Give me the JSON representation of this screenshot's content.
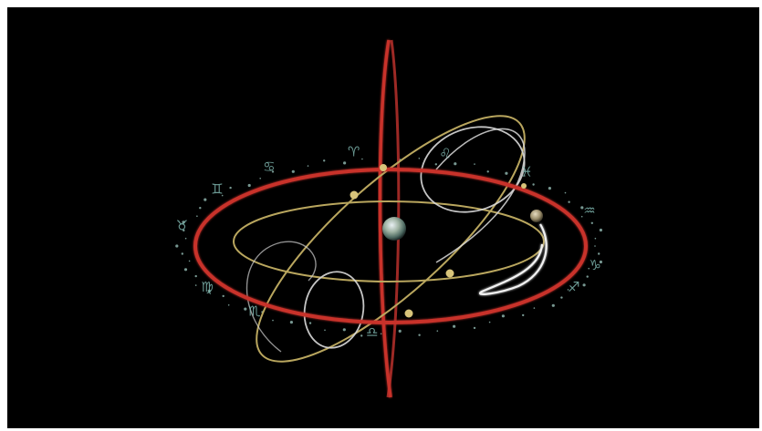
{
  "scene": {
    "description_visible_text": "",
    "colors": {
      "background": "#000000",
      "frame_border": "#ffffff",
      "ecliptic_ring": "#c8312c",
      "axis_ring": "#b8302b",
      "orbit_gold": "#b9a65e",
      "orbit_white": "#d9d9d9",
      "zodiac_glyph": "#7fb7b0",
      "star_dots": "#9fc9c2"
    },
    "icons": {
      "earth": "earth-globe-icon",
      "planet": "planet-sphere-icon"
    },
    "zodiac_glyphs": [
      "♈",
      "♋",
      "♊",
      "♉",
      "♍",
      "♎",
      "♏",
      "♐",
      "♑",
      "♒",
      "♓",
      "♌"
    ]
  }
}
